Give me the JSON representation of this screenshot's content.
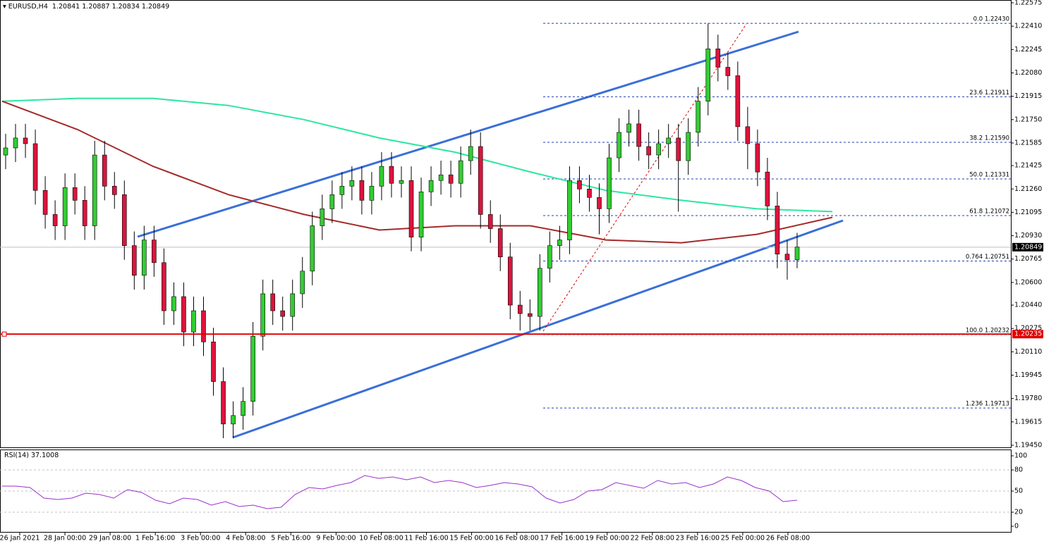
{
  "chart_data": {
    "type": "candlestick",
    "symbol": "EURUSD,H4",
    "ohlc": [
      1.20841,
      1.20887,
      1.20834,
      1.20849
    ],
    "categories": [
      "26 Jan 2021",
      "28 Jan 00:00",
      "29 Jan 08:00",
      "1 Feb 16:00",
      "3 Feb 00:00",
      "4 Feb 08:00",
      "5 Feb 16:00",
      "9 Feb 00:00",
      "10 Feb 08:00",
      "11 Feb 16:00",
      "15 Feb 00:00",
      "16 Feb 08:00",
      "17 Feb 16:00",
      "19 Feb 00:00",
      "22 Feb 08:00",
      "23 Feb 16:00",
      "25 Feb 00:00",
      "26 Feb 08:00"
    ],
    "candles": {
      "up_color": "#32cd32",
      "down_color": "#dc143c",
      "open": [
        1.215,
        1.2155,
        1.2162,
        1.2158,
        1.2125,
        1.2108,
        1.21,
        1.2127,
        1.2118,
        1.21,
        1.215,
        1.2128,
        1.2122,
        1.2086,
        1.2065,
        1.209,
        1.2074,
        1.204,
        1.205,
        1.2025,
        1.204,
        1.2018,
        1.199,
        1.196,
        1.1966,
        1.1976,
        1.2022,
        1.2052,
        1.204,
        1.2036,
        1.2052,
        1.2068,
        1.21,
        1.2112,
        1.2122,
        1.2128,
        1.2132,
        1.2118,
        1.2128,
        1.2142,
        1.213,
        1.2132,
        1.2092,
        1.2124,
        1.2132,
        1.2136,
        1.213,
        1.2146,
        1.2156,
        1.2108,
        1.2098,
        1.2078,
        1.2044,
        1.2038,
        1.2036,
        1.207,
        1.2086,
        1.209,
        1.2132,
        1.2126,
        1.212,
        1.2112,
        1.2148,
        1.2166,
        1.2172,
        1.2156,
        1.215,
        1.2158,
        1.2162,
        1.2146,
        1.2166,
        1.2188,
        1.2225,
        1.2212,
        1.2206,
        1.217,
        1.2158,
        1.2138,
        1.2114,
        1.208,
        1.2076
      ],
      "high": [
        1.2165,
        1.2172,
        1.2172,
        1.2168,
        1.2135,
        1.2118,
        1.2137,
        1.2137,
        1.2128,
        1.216,
        1.216,
        1.2138,
        1.2132,
        1.2096,
        1.21,
        1.21,
        1.2084,
        1.206,
        1.206,
        1.205,
        1.205,
        1.2028,
        1.2,
        1.1976,
        1.1986,
        1.2032,
        1.2062,
        1.2062,
        1.205,
        1.2062,
        1.2078,
        1.211,
        1.2122,
        1.2132,
        1.2138,
        1.2142,
        1.2142,
        1.2138,
        1.2152,
        1.2152,
        1.2142,
        1.2142,
        1.2134,
        1.2142,
        1.2146,
        1.2146,
        1.2156,
        1.2168,
        1.2166,
        1.2118,
        1.2108,
        1.2088,
        1.2054,
        1.2048,
        1.208,
        1.2096,
        1.21,
        1.2142,
        1.2142,
        1.2136,
        1.213,
        1.2158,
        1.2176,
        1.2182,
        1.2182,
        1.2166,
        1.2168,
        1.2172,
        1.2172,
        1.2176,
        1.2198,
        1.2243,
        1.2235,
        1.2222,
        1.2216,
        1.2184,
        1.2168,
        1.2148,
        1.2124,
        1.209,
        1.2095
      ],
      "low": [
        1.214,
        1.2145,
        1.2148,
        1.2115,
        1.2098,
        1.209,
        1.209,
        1.2108,
        1.209,
        1.209,
        1.2118,
        1.2112,
        1.2076,
        1.2055,
        1.2055,
        1.2064,
        1.203,
        1.203,
        1.2015,
        1.2015,
        1.2008,
        1.198,
        1.195,
        1.195,
        1.1956,
        1.1966,
        1.2012,
        1.203,
        1.2026,
        1.2026,
        1.2042,
        1.2058,
        1.209,
        1.2102,
        1.2112,
        1.2118,
        1.2108,
        1.2108,
        1.2118,
        1.212,
        1.212,
        1.2082,
        1.2082,
        1.2114,
        1.2122,
        1.212,
        1.212,
        1.2136,
        1.2098,
        1.2088,
        1.2068,
        1.2034,
        1.2026,
        1.2026,
        1.2026,
        1.206,
        1.2076,
        1.208,
        1.2116,
        1.211,
        1.2094,
        1.2102,
        1.2138,
        1.2156,
        1.2146,
        1.214,
        1.214,
        1.2148,
        1.211,
        1.2136,
        1.2156,
        1.2178,
        1.2202,
        1.2196,
        1.216,
        1.214,
        1.2128,
        1.2104,
        1.207,
        1.2062,
        1.207
      ],
      "close": [
        1.2155,
        1.2162,
        1.2158,
        1.2125,
        1.2108,
        1.21,
        1.2127,
        1.2118,
        1.21,
        1.215,
        1.2128,
        1.2122,
        1.2086,
        1.2065,
        1.209,
        1.2074,
        1.204,
        1.205,
        1.2025,
        1.204,
        1.2018,
        1.199,
        1.196,
        1.1966,
        1.1976,
        1.2022,
        1.2052,
        1.204,
        1.2036,
        1.2052,
        1.2068,
        1.21,
        1.2112,
        1.2122,
        1.2128,
        1.2132,
        1.2118,
        1.2128,
        1.2142,
        1.213,
        1.2132,
        1.2092,
        1.2124,
        1.2132,
        1.2136,
        1.213,
        1.2146,
        1.2156,
        1.2108,
        1.2098,
        1.2078,
        1.2044,
        1.2038,
        1.2036,
        1.207,
        1.2086,
        1.209,
        1.2132,
        1.2126,
        1.212,
        1.2112,
        1.2148,
        1.2166,
        1.2172,
        1.2156,
        1.215,
        1.2158,
        1.2162,
        1.2146,
        1.2166,
        1.2188,
        1.2225,
        1.2212,
        1.2206,
        1.217,
        1.2158,
        1.2138,
        1.2114,
        1.208,
        1.2076,
        1.2085
      ]
    },
    "moving_averages": [
      {
        "color": "#2ee6a0",
        "values": [
          1.2188,
          1.219,
          1.219,
          1.2185,
          1.2175,
          1.2162,
          1.2152,
          1.2138,
          1.2125,
          1.2118,
          1.2112,
          1.211
        ]
      },
      {
        "color": "#a52a2a",
        "values": [
          1.2188,
          1.2168,
          1.2142,
          1.2122,
          1.2108,
          1.2097,
          1.21,
          1.21,
          1.209,
          1.2088,
          1.2094,
          1.2106
        ]
      }
    ],
    "ylim": [
      1.1945,
      1.22575
    ],
    "yticks": [
      1.22575,
      {
        "value": 1.2241,
        "label": "1.22410"
      },
      1.22245,
      {
        "value": 1.2208,
        "label": "1.22080"
      },
      1.21915,
      {
        "value": 1.2175,
        "label": "1.21750"
      },
      1.21585,
      1.21425,
      {
        "value": 1.2126,
        "label": "1.21260"
      },
      1.21095,
      {
        "value": 1.2093,
        "label": "1.20930"
      },
      1.20765,
      {
        "value": 1.206,
        "label": "1.20600"
      },
      {
        "value": 1.2044,
        "label": "1.20440"
      },
      1.20275,
      {
        "value": 1.2011,
        "label": "1.20110"
      },
      1.19945,
      {
        "value": 1.1978,
        "label": "1.19780"
      },
      1.19615,
      {
        "value": 1.1945,
        "label": "1.19450"
      }
    ],
    "fib_levels": [
      {
        "value": 1.2243,
        "label": "0.0 1.22430"
      },
      {
        "value": 1.21911,
        "label": "23.6 1.21911"
      },
      {
        "value": 1.2159,
        "label": "38.2 1.21590"
      },
      {
        "value": 1.21331,
        "label": "50.0 1.21331"
      },
      {
        "value": 1.21072,
        "label": "61.8 1.21072"
      },
      {
        "value": 1.20751,
        "label": "0.764 1.20751"
      },
      {
        "value": 1.20232,
        "label": "100.0 1.20232"
      },
      {
        "value": 1.19713,
        "label": "1.236 1.19713"
      }
    ],
    "fib_color": "#1f3fb0",
    "last_price": 1.20849,
    "level_line": {
      "value": 1.20235,
      "color": "#e00000"
    },
    "rsi": {
      "name": "RSI(14)",
      "value": 37.1008,
      "color": "#9932cc",
      "ylim": [
        -8,
        109
      ],
      "yticks": [
        0,
        20,
        50,
        80,
        100
      ],
      "levels": [
        20,
        50,
        80
      ],
      "values": [
        57,
        57,
        55,
        40,
        38,
        40,
        47,
        45,
        40,
        52,
        48,
        37,
        32,
        40,
        38,
        30,
        35,
        28,
        30,
        25,
        27,
        45,
        55,
        53,
        58,
        62,
        72,
        68,
        70,
        66,
        70,
        62,
        65,
        62,
        55,
        58,
        62,
        60,
        56,
        40,
        33,
        38,
        50,
        52,
        62,
        58,
        54,
        65,
        60,
        62,
        55,
        60,
        70,
        65,
        55,
        50,
        35,
        37
      ]
    }
  }
}
